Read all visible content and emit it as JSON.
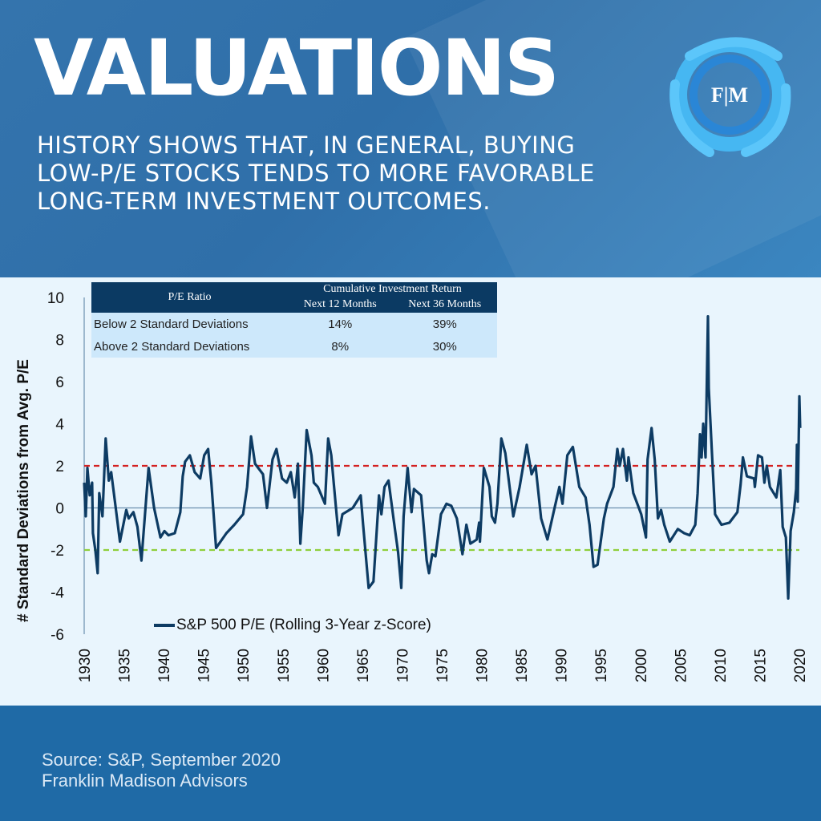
{
  "header": {
    "title": "VALUATIONS",
    "subtitle_lines": [
      "HISTORY SHOWS THAT, IN GENERAL, BUYING",
      "LOW-P/E STOCKS TENDS TO MORE FAVORABLE",
      "LONG-TERM INVESTMENT OUTCOMES."
    ],
    "logo_text": "F|M"
  },
  "table": {
    "col0_header": "P/E Ratio",
    "group_header": "Cumulative Investment Return",
    "col1_header": "Next 12 Months",
    "col2_header": "Next 36 Months",
    "rows": [
      {
        "label": "Below 2 Standard Deviations",
        "m12": "14%",
        "m36": "39%"
      },
      {
        "label": "Above 2 Standard Deviations",
        "m12": "8%",
        "m36": "30%"
      }
    ]
  },
  "footer": {
    "source": "Source: S&P, September 2020",
    "firm": "Franklin Madison Advisors"
  },
  "colors": {
    "line": "#0d3b63",
    "upper": "#d42020",
    "lower": "#8fcf3c",
    "zero": "#6b8fae"
  },
  "chart_data": {
    "type": "line",
    "title": "",
    "xlabel": "",
    "ylabel": "# Standard Deviations from Avg. P/E",
    "xlim": [
      1930,
      2020
    ],
    "ylim": [
      -6,
      10
    ],
    "x_ticks": [
      "1930",
      "1935",
      "1940",
      "1945",
      "1950",
      "1955",
      "1960",
      "1965",
      "1970",
      "1975",
      "1980",
      "1985",
      "1990",
      "1995",
      "2000",
      "2005",
      "2010",
      "2015",
      "2020"
    ],
    "y_ticks": [
      "10",
      "8",
      "6",
      "4",
      "2",
      "0",
      "-2",
      "-4",
      "-6"
    ],
    "reference_lines": [
      {
        "name": "upper",
        "y": 2
      },
      {
        "name": "zero",
        "y": 0
      },
      {
        "name": "lower",
        "y": -2
      }
    ],
    "legend": "top-left-bottom",
    "series": [
      {
        "name": "S&P 500 P/E (Rolling 3-Year z-Score)",
        "points": [
          [
            1930,
            1.2
          ],
          [
            1930.2,
            -0.4
          ],
          [
            1930.4,
            1.9
          ],
          [
            1930.7,
            0.6
          ],
          [
            1931,
            1.2
          ],
          [
            1931.1,
            -1.2
          ],
          [
            1931.4,
            -2.0
          ],
          [
            1931.7,
            -3.1
          ],
          [
            1931.9,
            0.7
          ],
          [
            1932.3,
            -0.4
          ],
          [
            1932.7,
            3.3
          ],
          [
            1933.1,
            1.3
          ],
          [
            1933.4,
            1.7
          ],
          [
            1933.9,
            0.2
          ],
          [
            1934.5,
            -1.6
          ],
          [
            1935.3,
            -0.1
          ],
          [
            1935.6,
            -0.5
          ],
          [
            1936.2,
            -0.2
          ],
          [
            1936.7,
            -0.9
          ],
          [
            1937.2,
            -2.5
          ],
          [
            1938.1,
            1.9
          ],
          [
            1938.8,
            0.0
          ],
          [
            1939.6,
            -1.4
          ],
          [
            1940.1,
            -1.1
          ],
          [
            1940.6,
            -1.3
          ],
          [
            1941.4,
            -1.2
          ],
          [
            1942.1,
            -0.2
          ],
          [
            1942.4,
            1.5
          ],
          [
            1942.7,
            2.2
          ],
          [
            1943.3,
            2.5
          ],
          [
            1943.9,
            1.7
          ],
          [
            1944.6,
            1.4
          ],
          [
            1945.1,
            2.5
          ],
          [
            1945.6,
            2.8
          ],
          [
            1946,
            1.2
          ],
          [
            1946.6,
            -1.9
          ],
          [
            1947.9,
            -1.2
          ],
          [
            1948.9,
            -0.8
          ],
          [
            1950,
            -0.3
          ],
          [
            1950.5,
            1.0
          ],
          [
            1951,
            3.4
          ],
          [
            1951.5,
            2.1
          ],
          [
            1952.5,
            1.6
          ],
          [
            1953,
            0.0
          ],
          [
            1953.7,
            2.3
          ],
          [
            1954.2,
            2.8
          ],
          [
            1954.9,
            1.4
          ],
          [
            1955.5,
            1.2
          ],
          [
            1956,
            1.7
          ],
          [
            1956.5,
            0.5
          ],
          [
            1956.9,
            2.1
          ],
          [
            1957.2,
            -1.7
          ],
          [
            1957.5,
            0.0
          ],
          [
            1958,
            3.7
          ],
          [
            1958.6,
            2.5
          ],
          [
            1958.9,
            1.2
          ],
          [
            1959.4,
            1.0
          ],
          [
            1960.3,
            0.2
          ],
          [
            1960.7,
            3.3
          ],
          [
            1961.1,
            2.5
          ],
          [
            1961.4,
            1.2
          ],
          [
            1962,
            -1.3
          ],
          [
            1962.5,
            -0.3
          ],
          [
            1963.8,
            0.0
          ],
          [
            1964.8,
            0.6
          ],
          [
            1965.1,
            -0.8
          ],
          [
            1965.8,
            -3.8
          ],
          [
            1966.4,
            -3.5
          ],
          [
            1967.1,
            0.6
          ],
          [
            1967.4,
            -0.3
          ],
          [
            1967.8,
            1.0
          ],
          [
            1968.3,
            1.3
          ],
          [
            1969,
            -0.7
          ],
          [
            1969.5,
            -2.1
          ],
          [
            1969.9,
            -3.8
          ],
          [
            1970.2,
            -0.4
          ],
          [
            1970.7,
            1.9
          ],
          [
            1971.2,
            -0.2
          ],
          [
            1971.5,
            0.9
          ],
          [
            1972.4,
            0.6
          ],
          [
            1973.1,
            -2.5
          ],
          [
            1973.4,
            -3.1
          ],
          [
            1973.8,
            -2.2
          ],
          [
            1974.2,
            -2.3
          ],
          [
            1974.9,
            -0.3
          ],
          [
            1975.6,
            0.2
          ],
          [
            1976.2,
            0.1
          ],
          [
            1976.9,
            -0.5
          ],
          [
            1977.6,
            -2.2
          ],
          [
            1978.1,
            -0.8
          ],
          [
            1978.6,
            -1.7
          ],
          [
            1979.4,
            -1.5
          ],
          [
            1979.7,
            -0.7
          ],
          [
            1979.8,
            -1.6
          ],
          [
            1980.3,
            1.9
          ],
          [
            1981,
            1.0
          ],
          [
            1981.3,
            -0.4
          ],
          [
            1981.7,
            -0.7
          ],
          [
            1982,
            0.2
          ],
          [
            1982.5,
            3.3
          ],
          [
            1983,
            2.6
          ],
          [
            1984,
            -0.4
          ],
          [
            1984.8,
            1.0
          ],
          [
            1985.7,
            3.0
          ],
          [
            1986.3,
            1.6
          ],
          [
            1986.8,
            2.0
          ],
          [
            1987.5,
            -0.5
          ],
          [
            1988.3,
            -1.5
          ],
          [
            1989.2,
            0.0
          ],
          [
            1989.8,
            1.0
          ],
          [
            1990.2,
            0.2
          ],
          [
            1990.8,
            2.5
          ],
          [
            1991.5,
            2.9
          ],
          [
            1992.3,
            1.0
          ],
          [
            1993.1,
            0.5
          ],
          [
            1993.6,
            -0.8
          ],
          [
            1994.1,
            -2.8
          ],
          [
            1994.6,
            -2.7
          ],
          [
            1995.4,
            -0.5
          ],
          [
            1995.8,
            0.2
          ],
          [
            1996.6,
            1.0
          ],
          [
            1997.1,
            2.8
          ],
          [
            1997.4,
            2.0
          ],
          [
            1997.8,
            2.8
          ],
          [
            1998.3,
            1.3
          ],
          [
            1998.5,
            2.4
          ],
          [
            1999.1,
            0.7
          ],
          [
            2000.1,
            -0.3
          ],
          [
            2000.7,
            -1.4
          ],
          [
            2000.9,
            2.3
          ],
          [
            2001.4,
            3.8
          ],
          [
            2001.8,
            2.3
          ],
          [
            2002.2,
            -0.5
          ],
          [
            2002.6,
            -0.1
          ],
          [
            2003,
            -0.8
          ],
          [
            2003.7,
            -1.6
          ],
          [
            2004.7,
            -1.0
          ],
          [
            2005.5,
            -1.2
          ],
          [
            2006.2,
            -1.3
          ],
          [
            2006.9,
            -0.8
          ],
          [
            2007.2,
            0.7
          ],
          [
            2007.5,
            3.5
          ],
          [
            2007.7,
            2.4
          ],
          [
            2007.9,
            4.0
          ],
          [
            2008.2,
            2.4
          ],
          [
            2008.5,
            9.1
          ],
          [
            2008.6,
            5.7
          ],
          [
            2009,
            2.6
          ],
          [
            2009.4,
            -0.3
          ],
          [
            2010.2,
            -0.8
          ],
          [
            2011.2,
            -0.7
          ],
          [
            2012.2,
            -0.2
          ],
          [
            2012.6,
            1.1
          ],
          [
            2012.9,
            2.4
          ],
          [
            2013.4,
            1.5
          ],
          [
            2014.3,
            1.4
          ],
          [
            2014.4,
            1.0
          ],
          [
            2014.8,
            2.5
          ],
          [
            2015.3,
            2.4
          ],
          [
            2015.6,
            1.2
          ],
          [
            2015.9,
            2.0
          ],
          [
            2016.3,
            1.0
          ],
          [
            2017.1,
            0.5
          ],
          [
            2017.6,
            1.8
          ],
          [
            2017.9,
            -0.9
          ],
          [
            2018.3,
            -1.4
          ],
          [
            2018.6,
            -4.3
          ],
          [
            2018.9,
            -1.1
          ],
          [
            2019.3,
            -0.2
          ],
          [
            2019.6,
            0.9
          ],
          [
            2019.7,
            3.0
          ],
          [
            2019.8,
            0.3
          ],
          [
            2020,
            5.3
          ],
          [
            2020.1,
            3.8
          ]
        ]
      }
    ]
  }
}
